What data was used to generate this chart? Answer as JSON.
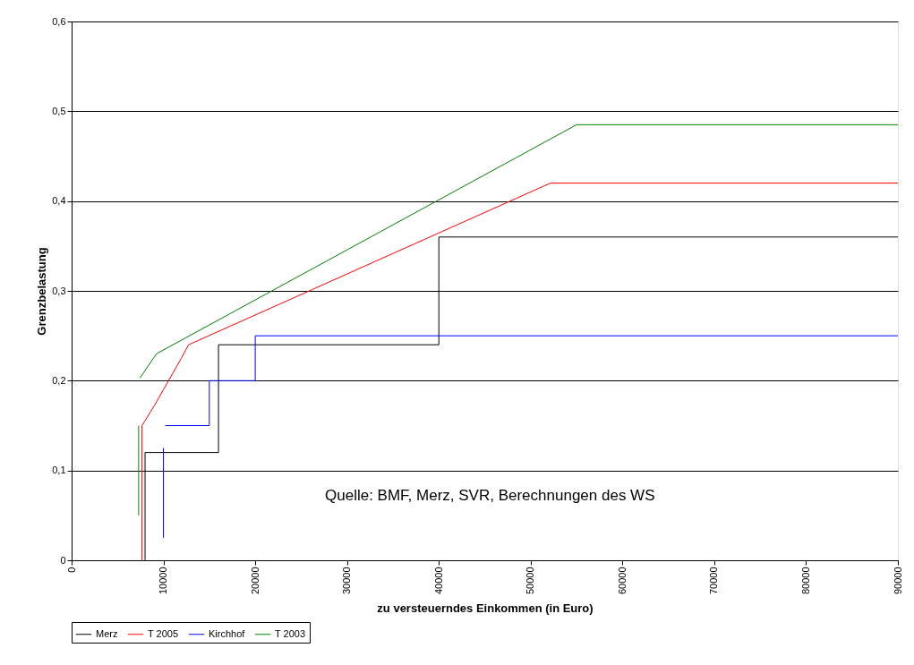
{
  "chart_data": {
    "type": "line",
    "xlabel": "zu versteuerndes Einkommen (in Euro)",
    "ylabel": "Grenzbelastung",
    "annotations": [
      "Quelle: BMF, Merz, SVR, Berechnungen des WS"
    ],
    "xlim": [
      0,
      90000
    ],
    "xticks": [
      0,
      10000,
      20000,
      30000,
      40000,
      50000,
      60000,
      70000,
      80000,
      90000
    ],
    "ylim": [
      0,
      0.6
    ],
    "yticks": [
      0,
      {
        "value": 0.1,
        "label": "0,1"
      },
      {
        "value": 0.2,
        "label": "0,2"
      },
      {
        "value": 0.3,
        "label": "0,3"
      },
      {
        "value": 0.4,
        "label": "0,4"
      },
      {
        "value": 0.5,
        "label": "0,5"
      },
      {
        "value": 0.6,
        "label": "0,6"
      }
    ],
    "grid": "y",
    "legend": "bottom",
    "marker": "none",
    "line_style": "solid",
    "series": [
      {
        "name": "Merz",
        "color": "#000000",
        "x": [
          8000,
          8000,
          16000,
          16000,
          40000,
          40000,
          90000
        ],
        "values": [
          0,
          0.12,
          0.12,
          0.24,
          0.24,
          0.36,
          0.36
        ]
      },
      {
        "name": "T 2005",
        "color": "#ff0000",
        "x": [
          7664,
          7664,
          9000,
          10000,
          11000,
          12000,
          12739,
          52152,
          90000
        ],
        "values": [
          0,
          0.15,
          0.172,
          0.19,
          0.208,
          0.226,
          0.24,
          0.42,
          0.42
        ]
      },
      {
        "name": "Kirchhof",
        "color": "#0000ff",
        "x": [
          10000,
          10000,
          10100,
          10200,
          15000,
          15000,
          20000,
          20000,
          90000
        ],
        "values": [
          0.025,
          0.125,
          null,
          0.15,
          0.15,
          0.2,
          0.2,
          0.25,
          0.25
        ]
      },
      {
        "name": "T 2003",
        "color": "#008000",
        "x": [
          7300,
          7300,
          7370,
          7440,
          9250,
          55000,
          90000
        ],
        "values": [
          0.05,
          0.15,
          null,
          0.203,
          0.23,
          0.485,
          0.485
        ]
      }
    ]
  }
}
